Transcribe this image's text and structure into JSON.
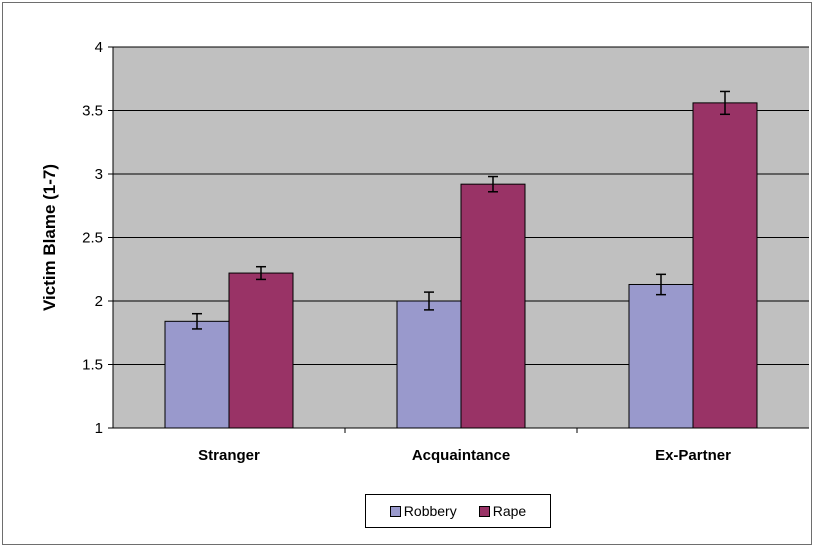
{
  "chart_data": {
    "type": "bar",
    "title": "",
    "xlabel": "",
    "ylabel": "Victim Blame (1-7)",
    "ylim": [
      1,
      4
    ],
    "yticks": [
      1,
      1.5,
      2,
      2.5,
      3,
      3.5,
      4
    ],
    "ytick_labels": [
      "1",
      "1.5",
      "2",
      "2.5",
      "3",
      "3.5",
      "4"
    ],
    "grid": true,
    "legend_position": "bottom",
    "categories": [
      "Stranger",
      "Acquaintance",
      "Ex-Partner"
    ],
    "series": [
      {
        "name": "Robbery",
        "color": "#9999cc",
        "values": [
          1.84,
          2.0,
          2.13
        ],
        "errors": [
          0.06,
          0.07,
          0.08
        ]
      },
      {
        "name": "Rape",
        "color": "#993366",
        "values": [
          2.22,
          2.92,
          3.56
        ],
        "errors": [
          0.05,
          0.06,
          0.09
        ]
      }
    ]
  }
}
